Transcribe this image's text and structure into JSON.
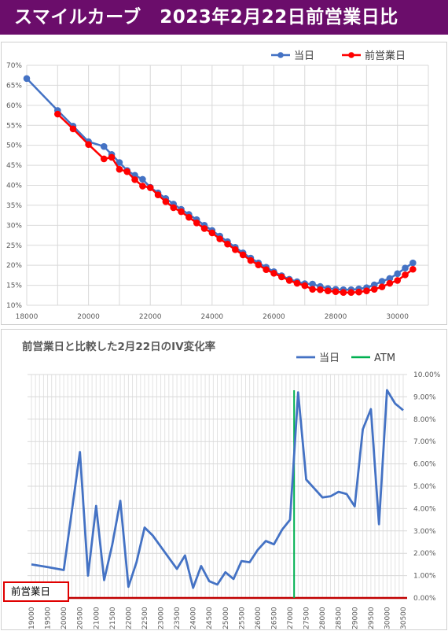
{
  "banner": {
    "title": "スマイルカーブ　2023年2月22日前営業日比"
  },
  "chart_data": [
    {
      "type": "line",
      "xlim": [
        18000,
        31000
      ],
      "ylim": [
        0.1,
        0.7
      ],
      "x_ticks": [
        "18000",
        "20000",
        "22000",
        "24000",
        "26000",
        "28000",
        "30000"
      ],
      "y_ticks": [
        "10%",
        "15%",
        "20%",
        "25%",
        "30%",
        "35%",
        "40%",
        "45%",
        "50%",
        "55%",
        "60%",
        "65%",
        "70%"
      ],
      "grid": true,
      "legend": "top-right",
      "series": [
        {
          "name": "当日",
          "color": "#4472c4",
          "x": [
            18000,
            19000,
            19500,
            20000,
            20500,
            20750,
            21000,
            21250,
            21500,
            21750,
            22000,
            22250,
            22500,
            22750,
            23000,
            23250,
            23500,
            23750,
            24000,
            24250,
            24500,
            24750,
            25000,
            25250,
            25500,
            25750,
            26000,
            26250,
            26500,
            26750,
            27000,
            27250,
            27500,
            27750,
            28000,
            28250,
            28500,
            28750,
            29000,
            29250,
            29500,
            29750,
            30000,
            30250,
            30500
          ],
          "values": [
            0.667,
            0.587,
            0.548,
            0.509,
            0.497,
            0.477,
            0.457,
            0.437,
            0.425,
            0.415,
            0.395,
            0.381,
            0.367,
            0.353,
            0.34,
            0.327,
            0.314,
            0.3,
            0.287,
            0.273,
            0.259,
            0.245,
            0.231,
            0.218,
            0.206,
            0.195,
            0.184,
            0.174,
            0.165,
            0.159,
            0.154,
            0.153,
            0.147,
            0.142,
            0.14,
            0.139,
            0.139,
            0.141,
            0.144,
            0.151,
            0.16,
            0.167,
            0.179,
            0.193,
            0.206
          ]
        },
        {
          "name": "前営業日",
          "color": "#ff0000",
          "x": [
            19000,
            19500,
            20000,
            20500,
            20750,
            21000,
            21250,
            21500,
            21750,
            22000,
            22250,
            22500,
            22750,
            23000,
            23250,
            23500,
            23750,
            24000,
            24250,
            24500,
            24750,
            25000,
            25250,
            25500,
            25750,
            26000,
            26250,
            26500,
            26750,
            27000,
            27250,
            27500,
            27750,
            28000,
            28250,
            28500,
            28750,
            29000,
            29250,
            29500,
            29750,
            30000,
            30250,
            30500
          ],
          "values": [
            0.578,
            0.541,
            0.502,
            0.466,
            0.47,
            0.44,
            0.434,
            0.414,
            0.398,
            0.394,
            0.376,
            0.359,
            0.344,
            0.334,
            0.32,
            0.306,
            0.292,
            0.281,
            0.266,
            0.253,
            0.239,
            0.226,
            0.212,
            0.201,
            0.189,
            0.18,
            0.171,
            0.162,
            0.155,
            0.149,
            0.14,
            0.139,
            0.136,
            0.134,
            0.132,
            0.132,
            0.133,
            0.136,
            0.14,
            0.146,
            0.155,
            0.162,
            0.176,
            0.19
          ]
        }
      ]
    },
    {
      "type": "line",
      "title": "前営業日と比較した2月22日のIV変化率",
      "ylim": [
        0.0,
        0.1
      ],
      "y_ticks": [
        "0.00%",
        "1.00%",
        "2.00%",
        "3.00%",
        "4.00%",
        "5.00%",
        "6.00%",
        "7.00%",
        "8.00%",
        "9.00%",
        "10.00%"
      ],
      "categories": [
        "19000",
        "19500",
        "20000",
        "20500",
        "21000",
        "21500",
        "22000",
        "22500",
        "23000",
        "23500",
        "24000",
        "24500",
        "25000",
        "25500",
        "26000",
        "26500",
        "27000",
        "27500",
        "28000",
        "28500",
        "29000",
        "29500",
        "30000",
        "30500"
      ],
      "x_range": [
        19000,
        30500
      ],
      "legend": "top",
      "series": [
        {
          "name": "当日",
          "color": "#4472c4",
          "x": [
            19000,
            19500,
            20000,
            20500,
            20750,
            21000,
            21250,
            21500,
            21750,
            22000,
            22250,
            22500,
            22750,
            23000,
            23250,
            23500,
            23750,
            24000,
            24250,
            24500,
            24750,
            25000,
            25250,
            25500,
            25750,
            26000,
            26250,
            26500,
            26750,
            27000,
            27250,
            27500,
            27750,
            28000,
            28250,
            28500,
            28750,
            29000,
            29250,
            29500,
            29750,
            30000,
            30250,
            30500
          ],
          "values": [
            0.015,
            0.0138,
            0.0125,
            0.0653,
            0.01,
            0.0412,
            0.008,
            0.0238,
            0.0435,
            0.005,
            0.016,
            0.0315,
            0.028,
            0.023,
            0.018,
            0.013,
            0.019,
            0.0045,
            0.0143,
            0.0075,
            0.006,
            0.0115,
            0.0085,
            0.0165,
            0.016,
            0.0215,
            0.0255,
            0.024,
            0.0305,
            0.035,
            0.092,
            0.053,
            0.049,
            0.045,
            0.0455,
            0.0475,
            0.0465,
            0.041,
            0.0755,
            0.0845,
            0.033,
            0.093,
            0.087,
            0.084
          ]
        },
        {
          "name": "ATM",
          "color": "#00b050",
          "atm_x": 27125
        }
      ],
      "baseline": {
        "name": "前営業日",
        "color": "#c00000",
        "value": 0.0
      }
    }
  ]
}
